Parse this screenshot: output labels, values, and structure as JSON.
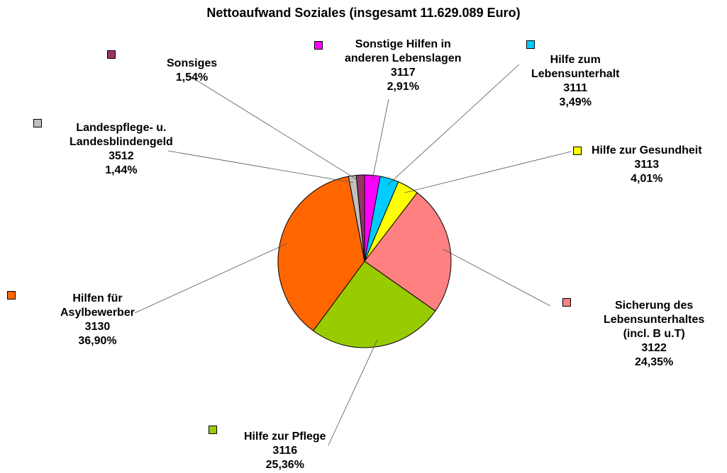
{
  "chart_data": {
    "type": "pie",
    "title": "Nettoaufwand Soziales (insgesamt 11.629.089 Euro)",
    "unit": "%",
    "start_angle_deg": 0,
    "direction": "clockwise",
    "slices": [
      {
        "label_lines": [
          "Sonstige Hilfen in",
          "anderen Lebenslagen"
        ],
        "code": "3117",
        "percent_label": "2,91%",
        "value": 2.91,
        "color": "#FF00FF"
      },
      {
        "label_lines": [
          "Hilfe zum",
          "Lebensunterhalt"
        ],
        "code": "3111",
        "percent_label": "3,49%",
        "value": 3.49,
        "color": "#00CCFF"
      },
      {
        "label_lines": [
          "Hilfe zur Gesundheit"
        ],
        "code": "3113",
        "percent_label": "4,01%",
        "value": 4.01,
        "color": "#FFFF00"
      },
      {
        "label_lines": [
          "Sicherung des",
          "Lebensunterhaltes",
          "(incl. B u.T)"
        ],
        "code": "3122",
        "percent_label": "24,35%",
        "value": 24.35,
        "color": "#FF8080"
      },
      {
        "label_lines": [
          "Hilfe zur Pflege"
        ],
        "code": "3116",
        "percent_label": "25,36%",
        "value": 25.36,
        "color": "#99CC00"
      },
      {
        "label_lines": [
          "Hilfen für",
          "Asylbewerber"
        ],
        "code": "3130",
        "percent_label": "36,90%",
        "value": 36.9,
        "color": "#FF6600"
      },
      {
        "label_lines": [
          "Landespflege- u.",
          "Landesblindengeld"
        ],
        "code": "3512",
        "percent_label": "1,44%",
        "value": 1.44,
        "color": "#C0C0C0"
      },
      {
        "label_lines": [
          "Sonsiges"
        ],
        "code": "",
        "percent_label": "1,54%",
        "value": 1.54,
        "color": "#993366"
      }
    ]
  }
}
